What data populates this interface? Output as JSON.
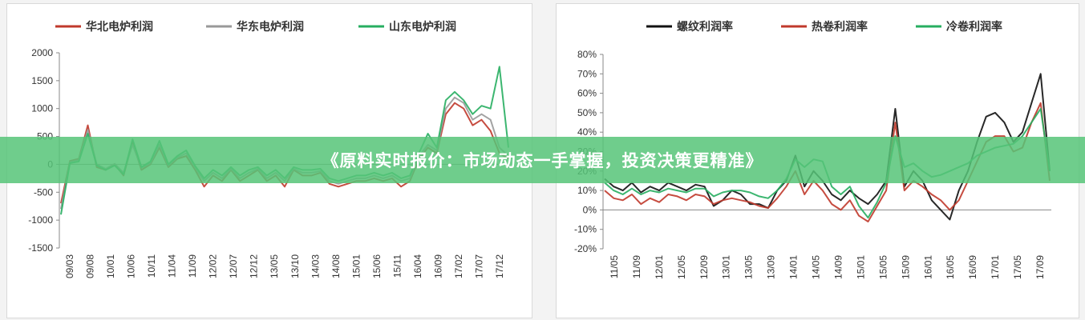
{
  "banner": {
    "text": "《原料实时报价：市场动态一手掌握，投资决策更精准》",
    "color": "#56c478"
  },
  "chart_data": [
    {
      "type": "line",
      "title": "",
      "xlabel": "",
      "ylabel": "",
      "ylim": [
        -1500,
        2000
      ],
      "yticks": [
        "2000",
        "1500",
        "1000",
        "500",
        "0",
        "-500",
        "-1000",
        "-1500"
      ],
      "xticks": [
        "09/03",
        "09/08",
        "10/01",
        "10/06",
        "10/11",
        "11/04",
        "11/09",
        "12/02",
        "12/07",
        "12/12",
        "13/05",
        "13/10",
        "14/03",
        "14/08",
        "15/01",
        "15/06",
        "15/11",
        "16/04",
        "16/09",
        "17/02",
        "17/07",
        "17/12"
      ],
      "grid": false,
      "legend_position": "top",
      "series": [
        {
          "name": "华北电炉利润",
          "color": "#c0392b",
          "values": [
            -700,
            60,
            100,
            700,
            -50,
            -100,
            0,
            -200,
            400,
            -100,
            0,
            300,
            -50,
            100,
            150,
            -100,
            -400,
            -200,
            -300,
            -100,
            -300,
            -200,
            -100,
            -300,
            -200,
            -400,
            -100,
            -200,
            -200,
            -150,
            -350,
            -400,
            -350,
            -300,
            -300,
            -250,
            -300,
            -250,
            -400,
            -300,
            100,
            300,
            200,
            900,
            1100,
            1000,
            700,
            800,
            600,
            200,
            100
          ]
        },
        {
          "name": "华东电炉利润",
          "color": "#999999",
          "values": [
            -800,
            40,
            80,
            620,
            0,
            -80,
            10,
            -150,
            350,
            -60,
            20,
            350,
            -20,
            120,
            200,
            -60,
            -300,
            -150,
            -250,
            -80,
            -250,
            -150,
            -80,
            -250,
            -150,
            -300,
            -80,
            -150,
            -150,
            -120,
            -300,
            -350,
            -300,
            -250,
            -250,
            -200,
            -250,
            -200,
            -300,
            -250,
            150,
            350,
            250,
            1000,
            1200,
            1100,
            800,
            900,
            800,
            300,
            150
          ]
        },
        {
          "name": "山东电炉利润",
          "color": "#27ae60",
          "values": [
            -900,
            20,
            50,
            550,
            -20,
            -100,
            -20,
            -180,
            450,
            -50,
            50,
            420,
            0,
            150,
            250,
            -30,
            -250,
            -100,
            -200,
            -50,
            -200,
            -100,
            -50,
            -200,
            -100,
            -250,
            -50,
            -100,
            -100,
            -80,
            -250,
            -300,
            -250,
            -200,
            -200,
            -150,
            -200,
            -150,
            -250,
            -200,
            200,
            550,
            300,
            1150,
            1300,
            1150,
            900,
            1050,
            1000,
            1750,
            300
          ]
        }
      ]
    },
    {
      "type": "line",
      "title": "",
      "xlabel": "",
      "ylabel": "",
      "ylim": [
        -20,
        80
      ],
      "yticks": [
        "80%",
        "70%",
        "60%",
        "50%",
        "40%",
        "30%",
        "20%",
        "10%",
        "0%",
        "-10%",
        "-20%"
      ],
      "xticks": [
        "11/05",
        "11/09",
        "12/01",
        "12/05",
        "12/09",
        "13/01",
        "13/05",
        "13/09",
        "14/01",
        "14/05",
        "14/09",
        "15/01",
        "15/05",
        "15/09",
        "16/01",
        "16/05",
        "16/09",
        "17/01",
        "17/05",
        "17/09"
      ],
      "grid": false,
      "legend_position": "top",
      "series": [
        {
          "name": "螺纹利润率",
          "color": "#111111",
          "values": [
            16,
            12,
            10,
            14,
            9,
            12,
            10,
            14,
            12,
            10,
            13,
            12,
            2,
            5,
            10,
            8,
            3,
            3,
            1,
            10,
            15,
            28,
            12,
            20,
            15,
            8,
            5,
            10,
            6,
            3,
            8,
            15,
            52,
            12,
            20,
            15,
            5,
            0,
            -5,
            10,
            20,
            35,
            48,
            50,
            45,
            35,
            40,
            55,
            70,
            20
          ]
        },
        {
          "name": "热卷利润率",
          "color": "#c0392b",
          "values": [
            10,
            6,
            5,
            8,
            3,
            6,
            4,
            8,
            7,
            5,
            8,
            7,
            3,
            5,
            6,
            5,
            4,
            2,
            1,
            6,
            12,
            20,
            8,
            15,
            10,
            3,
            0,
            5,
            -3,
            -6,
            2,
            10,
            45,
            10,
            15,
            12,
            8,
            5,
            0,
            5,
            15,
            25,
            35,
            38,
            38,
            30,
            32,
            45,
            55,
            15
          ]
        },
        {
          "name": "冷卷利润率",
          "color": "#27ae60",
          "values": [
            14,
            10,
            8,
            11,
            8,
            10,
            9,
            11,
            10,
            9,
            11,
            11,
            7,
            9,
            10,
            10,
            9,
            7,
            6,
            10,
            16,
            26,
            22,
            26,
            25,
            12,
            8,
            12,
            2,
            -4,
            4,
            14,
            38,
            22,
            24,
            20,
            17,
            18,
            20,
            22,
            24,
            28,
            30,
            32,
            33,
            34,
            38,
            45,
            52,
            20
          ]
        }
      ]
    }
  ]
}
